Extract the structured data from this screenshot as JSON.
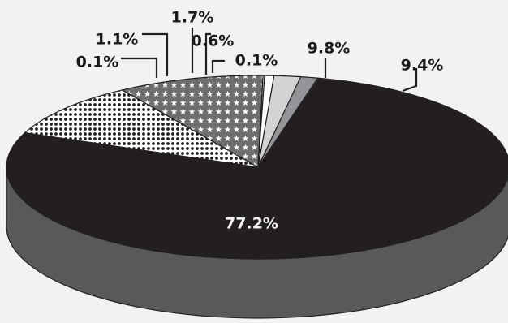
{
  "chart_data": {
    "type": "pie",
    "style": "3d",
    "background_color": "#f2f2f2",
    "legend": "none",
    "slices": [
      {
        "label": "77.2%",
        "value": 77.2,
        "color": "#231f20",
        "pattern": "solid"
      },
      {
        "label": "9.8%",
        "value": 9.8,
        "color": "#ffffff",
        "pattern": "dots"
      },
      {
        "label": "9.4%",
        "value": 9.4,
        "color": "#6d6e70",
        "pattern": "stars"
      },
      {
        "label": "0.1%",
        "value": 0.1,
        "color": "#ffffff",
        "pattern": "solid"
      },
      {
        "label": "0.6%",
        "value": 0.6,
        "color": "#ffffff",
        "pattern": "solid"
      },
      {
        "label": "1.7%",
        "value": 1.7,
        "color": "#d1d3d4",
        "pattern": "solid"
      },
      {
        "label": "1.1%",
        "value": 1.1,
        "color": "#939598",
        "pattern": "solid"
      },
      {
        "label": "0.1%",
        "value": 0.1,
        "color": "#58595b",
        "pattern": "solid"
      }
    ],
    "side_color": "#58595b"
  }
}
